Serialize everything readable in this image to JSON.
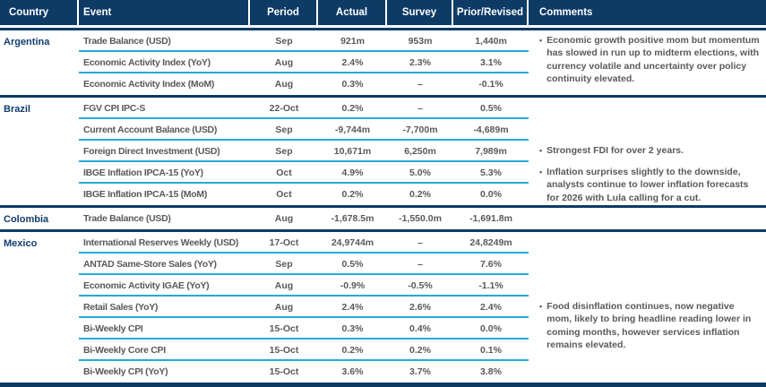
{
  "header": {
    "country": "Country",
    "event": "Event",
    "period": "Period",
    "actual": "Actual",
    "survey": "Survey",
    "prior": "Prior/Revised",
    "comments": "Comments"
  },
  "colors": {
    "header_navy": "#0e3a66",
    "row_divider_cyan": "#25a8db",
    "body_text_gray": "#58595b",
    "country_text_navy": "#123d6e",
    "header_text_white": "#ffffff"
  },
  "groups": [
    {
      "country": "Argentina",
      "rows": [
        {
          "event": "Trade Balance (USD)",
          "period": "Sep",
          "actual": "921m",
          "survey": "953m",
          "prior": "1,440m"
        },
        {
          "event": "Economic Activity Index (YoY)",
          "period": "Aug",
          "actual": "2.4%",
          "survey": "2.3%",
          "prior": "3.1%"
        },
        {
          "event": "Economic Activity Index (MoM)",
          "period": "Aug",
          "actual": "0.3%",
          "survey": "–",
          "prior": "-0.1%"
        }
      ],
      "comments": [
        {
          "align_row": 0,
          "text": "Economic growth positive mom but momentum has slowed in run up to midterm elections, with currency volatile and uncertainty over policy continuity elevated."
        }
      ]
    },
    {
      "country": "Brazil",
      "rows": [
        {
          "event": "FGV CPI IPC-S",
          "period": "22-Oct",
          "actual": "0.2%",
          "survey": "–",
          "prior": "0.5%"
        },
        {
          "event": "Current Account Balance (USD)",
          "period": "Sep",
          "actual": "-9,744m",
          "survey": "-7,700m",
          "prior": "-4,689m"
        },
        {
          "event": "Foreign Direct Investment (USD)",
          "period": "Sep",
          "actual": "10,671m",
          "survey": "6,250m",
          "prior": "7,989m"
        },
        {
          "event": "IBGE Inflation IPCA-15 (YoY)",
          "period": "Oct",
          "actual": "4.9%",
          "survey": "5.0%",
          "prior": "5.3%"
        },
        {
          "event": "IBGE Inflation IPCA-15 (MoM)",
          "period": "Oct",
          "actual": "0.2%",
          "survey": "0.2%",
          "prior": "0.0%"
        }
      ],
      "comments": [
        {
          "align_row": 2,
          "text": "Strongest FDI for over 2 years."
        },
        {
          "align_row": 3,
          "text": "Inflation surprises slightly to the downside, analysts continue to lower inflation forecasts for 2026 with Lula calling for a cut."
        }
      ]
    },
    {
      "country": "Colombia",
      "rows": [
        {
          "event": "Trade Balance (USD)",
          "period": "Aug",
          "actual": "-1,678.5m",
          "survey": "-1,550.0m",
          "prior": "-1,691.8m"
        }
      ],
      "comments": []
    },
    {
      "country": "Mexico",
      "rows": [
        {
          "event": "International Reserves Weekly (USD)",
          "period": "17-Oct",
          "actual": "24,9744m",
          "survey": "–",
          "prior": "24,8249m"
        },
        {
          "event": "ANTAD Same-Store Sales (YoY)",
          "period": "Sep",
          "actual": "0.5%",
          "survey": "–",
          "prior": "7.6%"
        },
        {
          "event": "Economic Activity IGAE (YoY)",
          "period": "Aug",
          "actual": "-0.9%",
          "survey": "-0.5%",
          "prior": "-1.1%"
        },
        {
          "event": "Retail Sales (YoY)",
          "period": "Aug",
          "actual": "2.4%",
          "survey": "2.6%",
          "prior": "2.4%"
        },
        {
          "event": "Bi-Weekly CPI",
          "period": "15-Oct",
          "actual": "0.3%",
          "survey": "0.4%",
          "prior": "0.0%"
        },
        {
          "event": "Bi-Weekly Core CPI",
          "period": "15-Oct",
          "actual": "0.2%",
          "survey": "0.2%",
          "prior": "0.1%"
        },
        {
          "event": "Bi-Weekly CPI (YoY)",
          "period": "15-Oct",
          "actual": "3.6%",
          "survey": "3.7%",
          "prior": "3.8%"
        }
      ],
      "comments": [
        {
          "align_row": 3,
          "text": "Food disinflation continues, now negative mom, likely to bring headline reading lower in coming months, however services inflation remains elevated."
        }
      ]
    }
  ]
}
